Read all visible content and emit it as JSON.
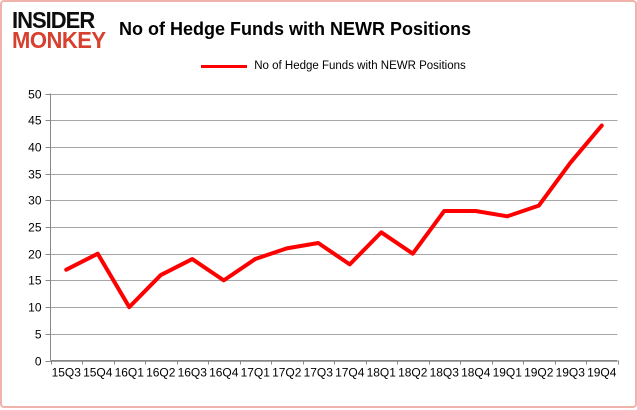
{
  "header": {
    "logo_line1": "INSIDER",
    "logo_line2": "MONKEY",
    "title": "No of Hedge Funds with NEWR Positions"
  },
  "legend": {
    "label": "No of Hedge Funds with NEWR Positions",
    "swatch_color": "#ff0000"
  },
  "chart_data": {
    "type": "line",
    "title": "No of Hedge Funds with NEWR Positions",
    "categories": [
      "15Q3",
      "15Q4",
      "16Q1",
      "16Q2",
      "16Q3",
      "16Q4",
      "17Q1",
      "17Q2",
      "17Q3",
      "17Q4",
      "18Q1",
      "18Q2",
      "18Q3",
      "18Q4",
      "19Q1",
      "19Q2",
      "19Q3",
      "19Q4"
    ],
    "series": [
      {
        "name": "No of Hedge Funds with NEWR Positions",
        "color": "#ff0000",
        "values": [
          17,
          20,
          10,
          16,
          19,
          15,
          19,
          21,
          22,
          18,
          24,
          20,
          28,
          28,
          27,
          29,
          37,
          44
        ]
      }
    ],
    "xlabel": "",
    "ylabel": "",
    "ylim": [
      0,
      50
    ],
    "ytick_step": 5,
    "grid": "horizontal",
    "legend_position": "top-center"
  },
  "colors": {
    "frame_border": "#f0b3ab",
    "logo_black": "#0d0d0d",
    "logo_red": "#d7402e",
    "line": "#ff0000",
    "gridline": "#a6a6a6",
    "axis": "#898989",
    "background": "#ffffff"
  }
}
